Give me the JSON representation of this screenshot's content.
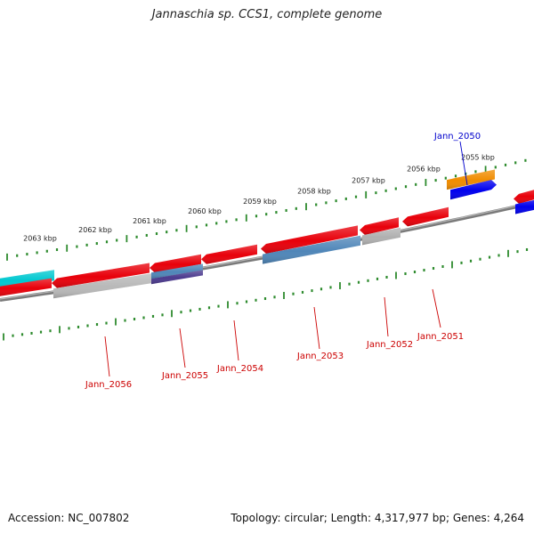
{
  "title": "Jannaschia sp. CCS1, complete genome",
  "footer": {
    "accession": "Accession: NC_007802",
    "stats": "Topology: circular; Length: 4,317,977 bp; Genes: 4,264"
  },
  "colors": {
    "backbone": "#7a7a7a",
    "tick": "#2e8b2e",
    "kbp_label": "#222222",
    "gene_label": "#cc0000",
    "highlight_label": "#0000cc"
  },
  "scale_labels": [
    "2063 kbp",
    "2062 kbp",
    "2061 kbp",
    "2060 kbp",
    "2059 kbp",
    "2058 kbp",
    "2057 kbp",
    "2056 kbp",
    "2055 kbp"
  ],
  "gene_labels": [
    {
      "text": "Jann_2050",
      "highlight": true
    },
    {
      "text": "Jann_2051",
      "highlight": false
    },
    {
      "text": "Jann_2052",
      "highlight": false
    },
    {
      "text": "Jann_2053",
      "highlight": false
    },
    {
      "text": "Jann_2054",
      "highlight": false
    },
    {
      "text": "Jann_2055",
      "highlight": false
    },
    {
      "text": "Jann_2056",
      "highlight": false
    }
  ],
  "features": [
    {
      "name": "feature-cyan",
      "color": "#00c8d0"
    },
    {
      "name": "feature-red-left",
      "color": "#e8000a"
    },
    {
      "name": "feature-red-2056",
      "color": "#e8000a"
    },
    {
      "name": "feature-gray-2056",
      "color": "#b8b8b8"
    },
    {
      "name": "feature-red-2055",
      "color": "#e8000a"
    },
    {
      "name": "feature-steel-2055",
      "color": "#4f86b8"
    },
    {
      "name": "feature-purple-2055",
      "color": "#4b3a8e"
    },
    {
      "name": "feature-red-2054",
      "color": "#e8000a"
    },
    {
      "name": "feature-red-2053",
      "color": "#e8000a"
    },
    {
      "name": "feature-steel-2053",
      "color": "#4f86b8"
    },
    {
      "name": "feature-red-2052",
      "color": "#e8000a"
    },
    {
      "name": "feature-gray-2052",
      "color": "#b0b0b0"
    },
    {
      "name": "feature-red-2051",
      "color": "#e8000a"
    },
    {
      "name": "feature-orange-2050",
      "color": "#f08c00"
    },
    {
      "name": "feature-blue-2050",
      "color": "#0000ee"
    },
    {
      "name": "feature-red-right",
      "color": "#e8000a"
    },
    {
      "name": "feature-blue-right",
      "color": "#0000ee"
    }
  ]
}
